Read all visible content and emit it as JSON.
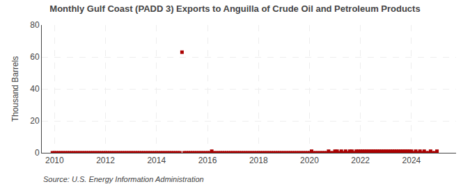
{
  "chart_data": {
    "type": "scatter",
    "title": "Monthly Gulf Coast (PADD 3) Exports to Anguilla of Crude Oil and Petroleum Products",
    "ylabel": "Thousand Barrels",
    "annotations": [
      "Source: U.S. Energy Information Administration"
    ],
    "color": "#aa0000",
    "marker": "square",
    "grid": true,
    "xlim": [
      2009.5,
      2025.75
    ],
    "xticks": [
      2010,
      2012,
      2014,
      2016,
      2018,
      2020,
      2022,
      2024
    ],
    "ylim": [
      0,
      80
    ],
    "yticks": [
      0,
      20,
      40,
      60,
      80
    ],
    "x": [
      2009.917,
      2010.0,
      2010.083,
      2010.167,
      2010.25,
      2010.333,
      2010.417,
      2010.5,
      2010.583,
      2010.667,
      2010.75,
      2010.833,
      2010.917,
      2011.0,
      2011.083,
      2011.167,
      2011.25,
      2011.333,
      2011.417,
      2011.5,
      2011.583,
      2011.667,
      2011.75,
      2011.833,
      2011.917,
      2012.0,
      2012.083,
      2012.167,
      2012.25,
      2012.333,
      2012.417,
      2012.5,
      2012.583,
      2012.667,
      2012.75,
      2012.833,
      2012.917,
      2013.0,
      2013.083,
      2013.167,
      2013.25,
      2013.333,
      2013.417,
      2013.5,
      2013.583,
      2013.667,
      2013.75,
      2013.833,
      2013.917,
      2014.0,
      2014.083,
      2014.167,
      2014.25,
      2014.333,
      2014.417,
      2014.5,
      2014.583,
      2014.667,
      2014.75,
      2014.833,
      2014.917,
      2015.0,
      2015.083,
      2015.167,
      2015.25,
      2015.333,
      2015.417,
      2015.5,
      2015.583,
      2015.667,
      2015.75,
      2015.833,
      2015.917,
      2016.0,
      2016.083,
      2016.167,
      2016.25,
      2016.333,
      2016.417,
      2016.5,
      2016.583,
      2016.667,
      2016.75,
      2016.833,
      2016.917,
      2017.0,
      2017.083,
      2017.167,
      2017.25,
      2017.333,
      2017.417,
      2017.5,
      2017.583,
      2017.667,
      2017.75,
      2017.833,
      2017.917,
      2018.0,
      2018.083,
      2018.167,
      2018.25,
      2018.333,
      2018.417,
      2018.5,
      2018.583,
      2018.667,
      2018.75,
      2018.833,
      2018.917,
      2019.0,
      2019.083,
      2019.167,
      2019.25,
      2019.333,
      2019.417,
      2019.5,
      2019.583,
      2019.667,
      2019.75,
      2019.833,
      2019.917,
      2020.0,
      2020.083,
      2020.167,
      2020.25,
      2020.333,
      2020.417,
      2020.5,
      2020.583,
      2020.667,
      2020.75,
      2020.833,
      2020.917,
      2021.0,
      2021.083,
      2021.167,
      2021.25,
      2021.333,
      2021.417,
      2021.5,
      2021.583,
      2021.667,
      2021.75,
      2021.833,
      2021.917,
      2022.0,
      2022.083,
      2022.167,
      2022.25,
      2022.333,
      2022.417,
      2022.5,
      2022.583,
      2022.667,
      2022.75,
      2022.833,
      2022.917,
      2023.0,
      2023.083,
      2023.167,
      2023.25,
      2023.333,
      2023.417,
      2023.5,
      2023.583,
      2023.667,
      2023.75,
      2023.833,
      2023.917,
      2024.0,
      2024.083,
      2024.167,
      2024.25,
      2024.333,
      2024.417,
      2024.5,
      2024.583,
      2024.667,
      2024.75,
      2024.833,
      2024.917,
      2025.0
    ],
    "values": [
      0,
      0,
      0,
      0,
      0,
      0,
      0,
      0,
      0,
      0,
      0,
      0,
      0,
      0,
      0,
      0,
      0,
      0,
      0,
      0,
      0,
      0,
      0,
      0,
      0,
      0,
      0,
      0,
      0,
      0,
      0,
      0,
      0,
      0,
      0,
      0,
      0,
      0,
      0,
      0,
      0,
      0,
      0,
      0,
      0,
      0,
      0,
      0,
      0,
      0,
      0,
      0,
      0,
      0,
      0,
      0,
      0,
      0,
      0,
      0,
      0,
      63,
      0,
      0,
      0,
      0,
      0,
      0,
      0,
      0,
      0,
      0,
      0,
      0,
      0,
      1,
      0,
      0,
      0,
      0,
      0,
      0,
      0,
      0,
      0,
      0,
      0,
      0,
      0,
      0,
      0,
      0,
      0,
      0,
      0,
      0,
      0,
      0,
      0,
      0,
      0,
      0,
      0,
      0,
      0,
      0,
      0,
      0,
      0,
      0,
      0,
      0,
      0,
      0,
      0,
      0,
      0,
      0,
      0,
      0,
      0,
      0,
      1,
      0,
      0,
      0,
      0,
      0,
      0,
      0,
      1,
      0,
      0,
      1,
      1,
      0,
      1,
      0,
      1,
      0,
      1,
      1,
      0,
      1,
      1,
      1,
      1,
      1,
      1,
      1,
      1,
      1,
      1,
      1,
      1,
      1,
      1,
      1,
      1,
      1,
      1,
      1,
      1,
      1,
      1,
      1,
      1,
      1,
      1,
      1,
      0,
      1,
      0,
      1,
      0,
      1,
      0,
      0,
      1,
      0,
      0,
      1
    ]
  }
}
